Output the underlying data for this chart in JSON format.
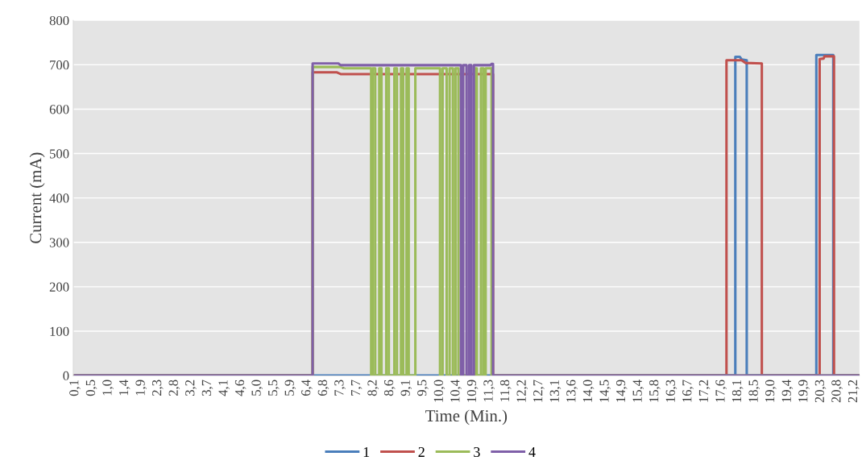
{
  "chart_data": {
    "type": "line",
    "xlabel": "Time (Min.)",
    "ylabel": "Current (mA)",
    "xlim": [
      0.05,
      21.4
    ],
    "ylim": [
      0,
      800
    ],
    "yticks": [
      0,
      100,
      200,
      300,
      400,
      500,
      600,
      700,
      800
    ],
    "xticks": [
      {
        "value": 0.1,
        "label": "0,1"
      },
      {
        "value": 0.55,
        "label": "0,5"
      },
      {
        "value": 1.0,
        "label": "1,0"
      },
      {
        "value": 1.45,
        "label": "1,4"
      },
      {
        "value": 1.9,
        "label": "1,9"
      },
      {
        "value": 2.35,
        "label": "2,3"
      },
      {
        "value": 2.8,
        "label": "2,8"
      },
      {
        "value": 3.25,
        "label": "3,2"
      },
      {
        "value": 3.7,
        "label": "3,7"
      },
      {
        "value": 4.15,
        "label": "4,1"
      },
      {
        "value": 4.6,
        "label": "4,6"
      },
      {
        "value": 5.05,
        "label": "5,0"
      },
      {
        "value": 5.5,
        "label": "5,5"
      },
      {
        "value": 5.95,
        "label": "5,9"
      },
      {
        "value": 6.4,
        "label": "6,4"
      },
      {
        "value": 6.85,
        "label": "6,8"
      },
      {
        "value": 7.3,
        "label": "7,3"
      },
      {
        "value": 7.75,
        "label": "7,7"
      },
      {
        "value": 8.2,
        "label": "8,2"
      },
      {
        "value": 8.65,
        "label": "8,6"
      },
      {
        "value": 9.1,
        "label": "9,1"
      },
      {
        "value": 9.55,
        "label": "9,5"
      },
      {
        "value": 10.0,
        "label": "10,0"
      },
      {
        "value": 10.45,
        "label": "10,4"
      },
      {
        "value": 10.9,
        "label": "10,9"
      },
      {
        "value": 11.35,
        "label": "11,3"
      },
      {
        "value": 11.8,
        "label": "11,8"
      },
      {
        "value": 12.25,
        "label": "12,2"
      },
      {
        "value": 12.7,
        "label": "12,7"
      },
      {
        "value": 13.15,
        "label": "13,1"
      },
      {
        "value": 13.6,
        "label": "13,6"
      },
      {
        "value": 14.05,
        "label": "14,0"
      },
      {
        "value": 14.5,
        "label": "14,5"
      },
      {
        "value": 14.95,
        "label": "14,9"
      },
      {
        "value": 15.4,
        "label": "15,4"
      },
      {
        "value": 15.85,
        "label": "15,8"
      },
      {
        "value": 16.3,
        "label": "16,3"
      },
      {
        "value": 16.75,
        "label": "16,7"
      },
      {
        "value": 17.2,
        "label": "17,2"
      },
      {
        "value": 17.65,
        "label": "17,6"
      },
      {
        "value": 18.1,
        "label": "18,1"
      },
      {
        "value": 18.55,
        "label": "18,5"
      },
      {
        "value": 19.0,
        "label": "19,0"
      },
      {
        "value": 19.45,
        "label": "19,4"
      },
      {
        "value": 19.9,
        "label": "19,9"
      },
      {
        "value": 20.35,
        "label": "20,3"
      },
      {
        "value": 20.8,
        "label": "20,8"
      },
      {
        "value": 21.25,
        "label": "21,2"
      }
    ],
    "grid": "y",
    "legend": "bottom",
    "line_style": "solid",
    "series": [
      {
        "name": "1",
        "color": "#4a7ebb",
        "x": [
          0.1,
          18.03,
          18.03,
          18.15,
          18.2,
          18.34,
          18.34,
          20.23,
          20.23,
          20.69,
          20.69,
          21.4
        ],
        "values": [
          0,
          0,
          718,
          718,
          712,
          710,
          0,
          0,
          722,
          722,
          0,
          0
        ]
      },
      {
        "name": "2",
        "color": "#c0504d",
        "x": [
          0.1,
          6.55,
          6.55,
          7.2,
          7.31,
          11.45,
          11.45,
          17.79,
          17.79,
          18.2,
          18.31,
          18.75,
          18.75,
          20.32,
          20.32,
          20.43,
          20.45,
          20.71,
          20.71,
          21.4
        ],
        "values": [
          0,
          0,
          683,
          683,
          679,
          679,
          0,
          0,
          710,
          710,
          704,
          703,
          0,
          0,
          713,
          714,
          719,
          719,
          0,
          0
        ]
      },
      {
        "name": "3",
        "color": "#9bbb59",
        "x": [
          0.1,
          6.55,
          6.55,
          7.3,
          7.4,
          8.14,
          8.14,
          8.18,
          8.18,
          8.25,
          8.25,
          8.36,
          8.36,
          8.42,
          8.42,
          8.55,
          8.55,
          8.62,
          8.62,
          8.77,
          8.77,
          8.84,
          8.84,
          8.95,
          8.95,
          9.01,
          9.01,
          9.1,
          9.1,
          9.16,
          9.16,
          9.34,
          9.34,
          10.01,
          10.01,
          10.08,
          10.08,
          10.19,
          10.19,
          10.27,
          10.27,
          10.36,
          10.36,
          10.43,
          10.43,
          10.51,
          10.51,
          10.95,
          10.95,
          11.01,
          11.01,
          11.12,
          11.12,
          11.19,
          11.19,
          11.25,
          11.25,
          11.41,
          11.41,
          21.4
        ],
        "values": [
          0,
          0,
          695,
          695,
          692,
          692,
          0,
          0,
          692,
          692,
          0,
          0,
          692,
          692,
          0,
          0,
          692,
          692,
          0,
          0,
          692,
          692,
          0,
          0,
          692,
          692,
          0,
          0,
          692,
          692,
          0,
          0,
          692,
          692,
          0,
          0,
          692,
          692,
          0,
          0,
          692,
          692,
          0,
          0,
          692,
          692,
          0,
          0,
          692,
          692,
          0,
          0,
          692,
          692,
          0,
          0,
          692,
          692,
          0,
          0
        ]
      },
      {
        "name": "4",
        "color": "#7f5fa8",
        "x": [
          0.1,
          6.55,
          6.55,
          7.25,
          7.31,
          10.58,
          10.58,
          10.64,
          10.64,
          10.73,
          10.73,
          10.8,
          10.8,
          10.86,
          10.86,
          10.93,
          10.93,
          11.38,
          11.41,
          11.45,
          11.45,
          21.4
        ],
        "values": [
          0,
          0,
          703,
          703,
          699,
          699,
          0,
          0,
          699,
          699,
          0,
          0,
          699,
          699,
          0,
          0,
          699,
          699,
          702,
          702,
          0,
          0
        ]
      }
    ]
  }
}
